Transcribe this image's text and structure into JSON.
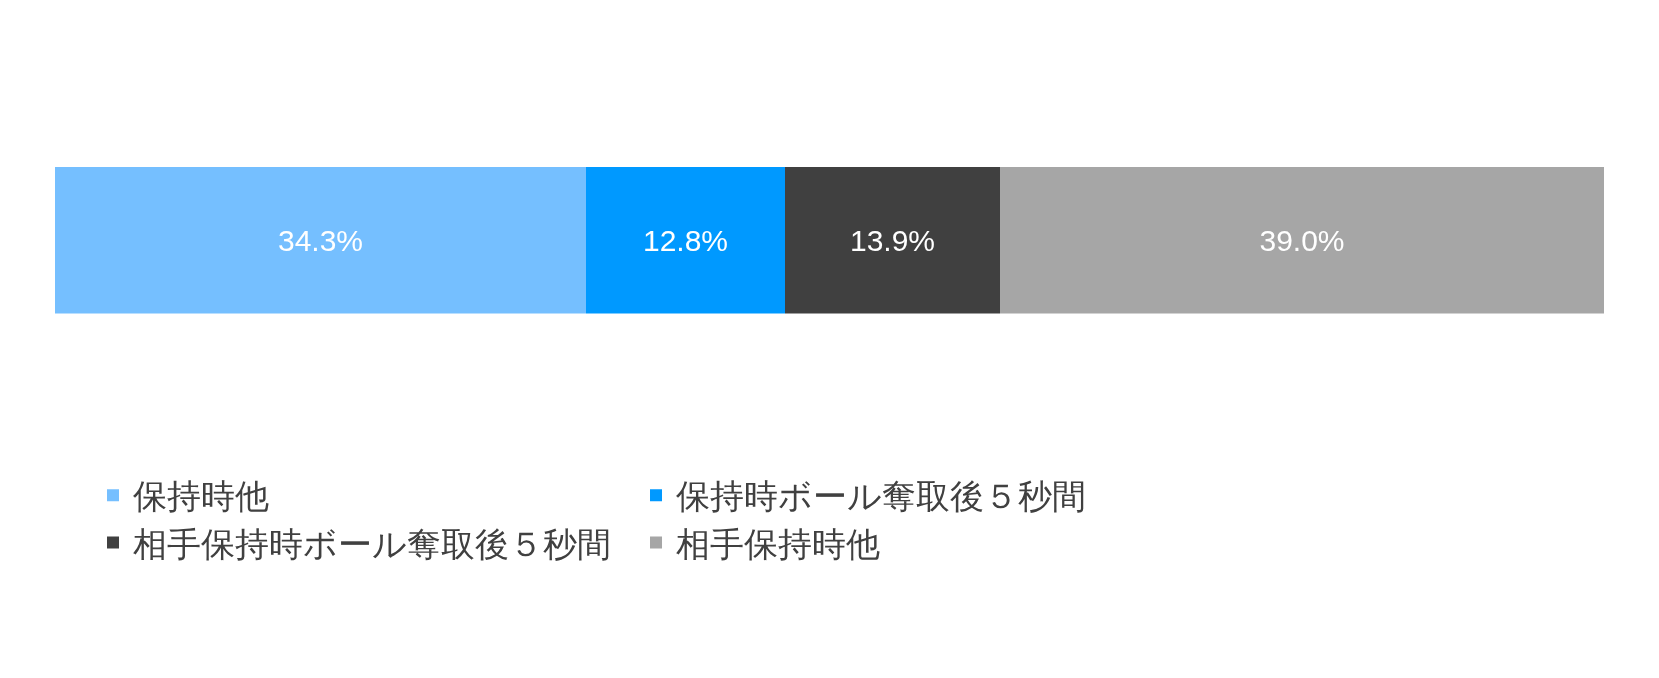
{
  "chart_data": {
    "type": "bar",
    "orientation": "horizontal",
    "stacked": true,
    "categories": [
      null
    ],
    "legend": "bottom",
    "series": [
      {
        "name": "保持時他",
        "color": "#75bfff",
        "values": [
          34.3
        ],
        "value_labels": [
          "34.3%"
        ]
      },
      {
        "name": "保持時ボール奪取後５秒間",
        "color": "#0099ff",
        "values": [
          12.8
        ],
        "value_labels": [
          "12.8%"
        ]
      },
      {
        "name": "相手保持時ボール奪取後５秒間",
        "color": "#404040",
        "values": [
          13.9
        ],
        "value_labels": [
          "13.9%"
        ]
      },
      {
        "name": "相手保持時他",
        "color": "#a6a6a6",
        "values": [
          39.0
        ],
        "value_labels": [
          "39.0%"
        ]
      }
    ]
  }
}
